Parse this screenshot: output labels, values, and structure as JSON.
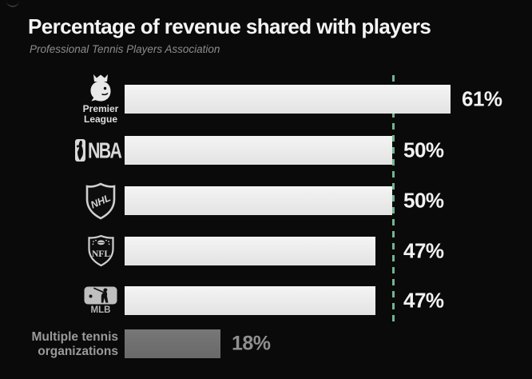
{
  "header": {
    "title": "Percentage of revenue shared with players",
    "subtitle": "Professional Tennis Players Association"
  },
  "colors": {
    "background": "#0a0a0a",
    "bar": "#ededed",
    "muted_bar": "#6f6f6f",
    "value_label": "#f2f2f2",
    "muted_text": "#9a9a9a",
    "reference_line": "#74b494"
  },
  "chart_data": {
    "type": "bar",
    "orientation": "horizontal",
    "title": "Percentage of revenue shared with players",
    "subtitle": "Professional Tennis Players Association",
    "xlim": [
      0,
      65
    ],
    "grid": false,
    "legend": "none",
    "reference_line": {
      "value": 50,
      "style": "dashed",
      "color": "#74b494"
    },
    "categories": [
      "Premier League",
      "NBA",
      "NHL",
      "NFL",
      "MLB",
      "Multiple tennis organizations"
    ],
    "values": [
      61,
      50,
      50,
      47,
      47,
      18
    ],
    "value_labels": [
      "61%",
      "50%",
      "50%",
      "47%",
      "47%",
      "18%"
    ],
    "rows": [
      {
        "label": "Premier League",
        "label_lines": [
          "Premier",
          "League"
        ],
        "icon": "premier-league-icon",
        "value": 61,
        "display_value": "61%",
        "muted": false
      },
      {
        "label": "NBA",
        "icon": "nba-icon",
        "value": 50,
        "display_value": "50%",
        "muted": false
      },
      {
        "label": "NHL",
        "icon": "nhl-icon",
        "value": 50,
        "display_value": "50%",
        "muted": false
      },
      {
        "label": "NFL",
        "icon": "nfl-icon",
        "value": 47,
        "display_value": "47%",
        "muted": false
      },
      {
        "label": "MLB",
        "icon": "mlb-icon",
        "value": 47,
        "display_value": "47%",
        "muted": false
      },
      {
        "label": "Multiple tennis organizations",
        "label_lines": [
          "Multiple tennis",
          "organizations"
        ],
        "icon": null,
        "value": 18,
        "display_value": "18%",
        "muted": true
      }
    ]
  }
}
